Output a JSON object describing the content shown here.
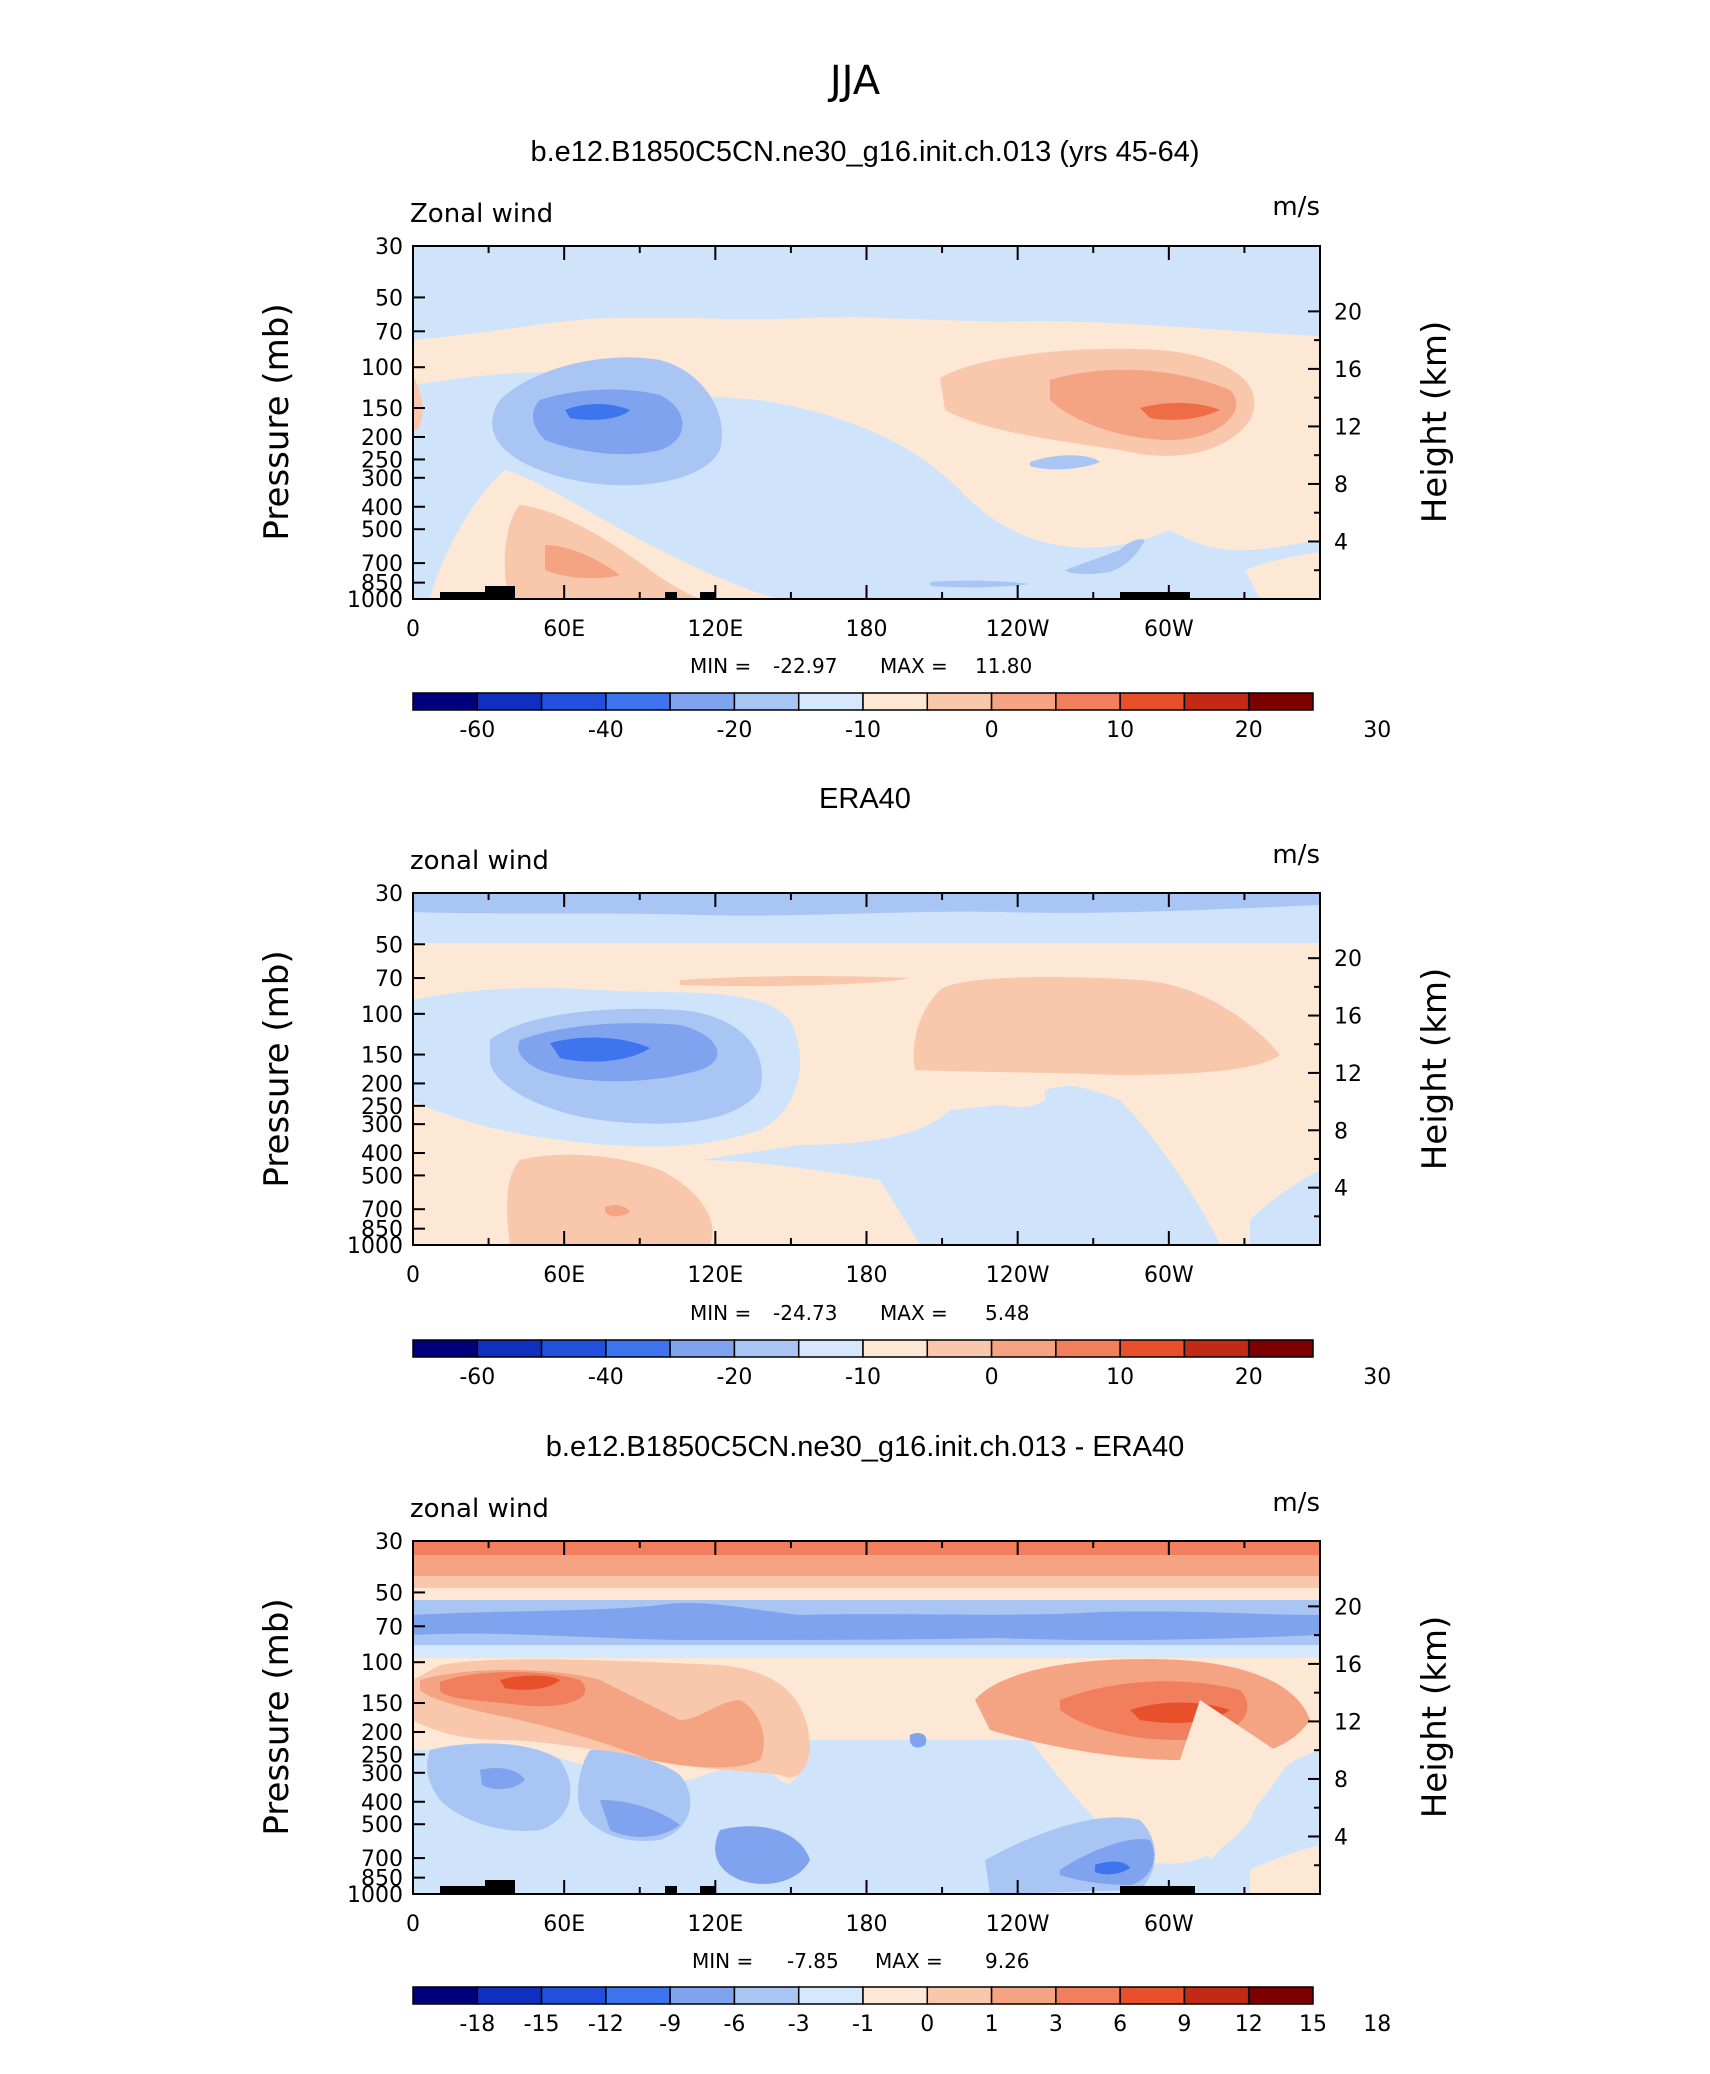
{
  "page_title": "JJA",
  "colors": {
    "neg_fill": "#cfe4fb",
    "neg_contour_1": "#a9c5f4",
    "neg_contour_2": "#7fa3ee",
    "neg_core": "#3f74ef",
    "pos_fill": "#fde8d6",
    "pos_contour_1": "#f9c8ac",
    "pos_contour_2": "#f5a483",
    "pos_core": "#ef6d45",
    "topography": "#000000"
  },
  "colorbar_colors_main": [
    "#00007d",
    "#0f2fbf",
    "#2250dd",
    "#3f74ef",
    "#7fa3ee",
    "#a9c5f4",
    "#d6e8fb",
    "#fde8d6",
    "#f9c8ac",
    "#f5a483",
    "#f17e5c",
    "#e8502c",
    "#c22a15",
    "#7d0000"
  ],
  "chart_data": [
    {
      "type": "heatmap",
      "title": "b.e12.B1850C5CN.ne30_g16.init.ch.013 (yrs 45-64)",
      "corner_left": "Zonal wind",
      "corner_right": "m/s",
      "ylabel": "Pressure (mb)",
      "ylabel_right": "Height (km)",
      "x_ticks": [
        "0",
        "60E",
        "120E",
        "180",
        "120W",
        "60W"
      ],
      "y_ticks": [
        "30",
        "50",
        "70",
        "100",
        "150",
        "200",
        "250",
        "300",
        "400",
        "500",
        "700",
        "850",
        "1000"
      ],
      "y_ticks_right": [
        "20",
        "16",
        "12",
        "8",
        "4"
      ],
      "min_label": "MIN =",
      "min_value": "-22.97",
      "max_label": "MAX =",
      "max_value": "11.80",
      "colorbar_labels": [
        "-60",
        "-40",
        "-20",
        "-10",
        "0",
        "10",
        "20",
        "30"
      ]
    },
    {
      "type": "heatmap",
      "title": "ERA40",
      "corner_left": "zonal wind",
      "corner_right": "m/s",
      "ylabel": "Pressure (mb)",
      "ylabel_right": "Height (km)",
      "x_ticks": [
        "0",
        "60E",
        "120E",
        "180",
        "120W",
        "60W"
      ],
      "y_ticks": [
        "30",
        "50",
        "70",
        "100",
        "150",
        "200",
        "250",
        "300",
        "400",
        "500",
        "700",
        "850",
        "1000"
      ],
      "y_ticks_right": [
        "20",
        "16",
        "12",
        "8",
        "4"
      ],
      "min_label": "MIN =",
      "min_value": "-24.73",
      "max_label": "MAX =",
      "max_value": "5.48",
      "colorbar_labels": [
        "-60",
        "-40",
        "-20",
        "-10",
        "0",
        "10",
        "20",
        "30"
      ]
    },
    {
      "type": "heatmap",
      "title": "b.e12.B1850C5CN.ne30_g16.init.ch.013 - ERA40",
      "corner_left": "zonal wind",
      "corner_right": "m/s",
      "ylabel": "Pressure (mb)",
      "ylabel_right": "Height (km)",
      "x_ticks": [
        "0",
        "60E",
        "120E",
        "180",
        "120W",
        "60W"
      ],
      "y_ticks": [
        "30",
        "50",
        "70",
        "100",
        "150",
        "200",
        "250",
        "300",
        "400",
        "500",
        "700",
        "850",
        "1000"
      ],
      "y_ticks_right": [
        "20",
        "16",
        "12",
        "8",
        "4"
      ],
      "min_label": "MIN =",
      "min_value": "-7.85",
      "max_label": "MAX =",
      "max_value": "9.26",
      "colorbar_labels": [
        "-18",
        "-15",
        "-12",
        "-9",
        "-6",
        "-3",
        "-1",
        "0",
        "1",
        "3",
        "6",
        "9",
        "12",
        "15",
        "18"
      ]
    }
  ]
}
